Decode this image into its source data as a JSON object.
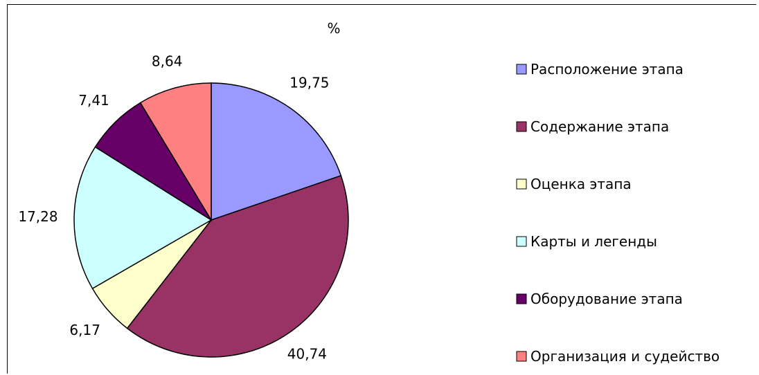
{
  "chart_data": {
    "type": "pie",
    "title": "%",
    "categories": [
      "Расположение этапа",
      "Содержание этапа",
      "Оценка этапа",
      "Карты и легенды",
      "Оборудование этапа",
      "Организация и судейство"
    ],
    "values": [
      19.75,
      40.74,
      6.17,
      17.28,
      7.41,
      8.64
    ],
    "value_labels": [
      "19,75",
      "40,74",
      "6,17",
      "17,28",
      "7,41",
      "8,64"
    ],
    "colors": [
      "#9999ff",
      "#993366",
      "#ffffcc",
      "#ccffff",
      "#660066",
      "#ff8080"
    ],
    "legend_position": "right",
    "start_angle_deg": 0,
    "direction": "clockwise"
  }
}
